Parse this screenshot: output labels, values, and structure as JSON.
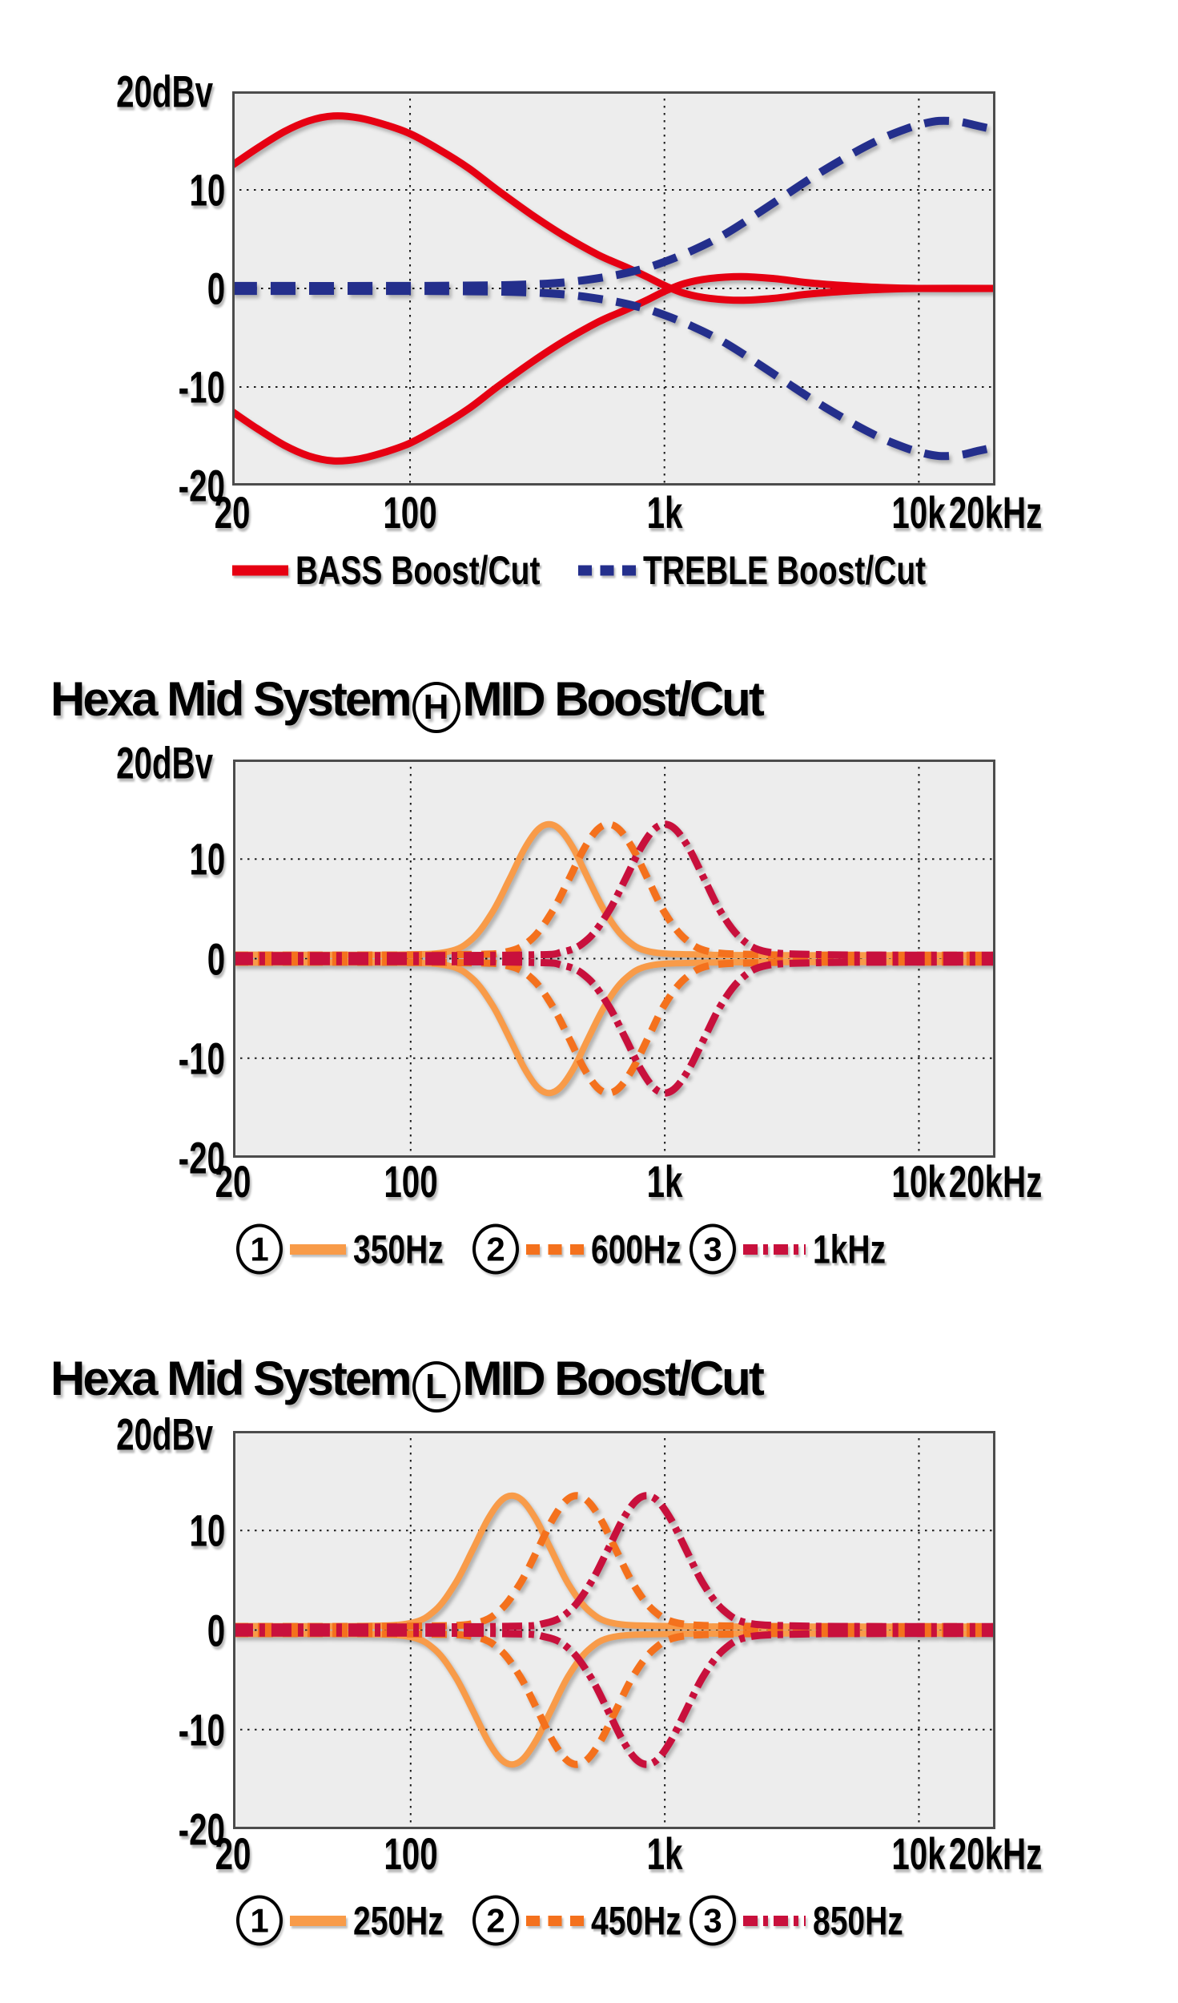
{
  "page": {
    "background": "#ffffff"
  },
  "colors": {
    "red": "#e60012",
    "blue": "#242f8c",
    "orange": "#f89b49",
    "orange_dark": "#f4711d",
    "crimson": "#c8103c",
    "plot_bg": "#ededed",
    "plot_border": "#4c4c4c",
    "grid": "#1a1a1a",
    "text": "#000000"
  },
  "chart_data": [
    {
      "id": "tone-control",
      "type": "line",
      "title": null,
      "x_scale": "log",
      "xlim": [
        20,
        20000
      ],
      "ylim": [
        -20,
        20
      ],
      "y_unit_label": "20dBv",
      "y_ticks": [
        {
          "v": 10,
          "label": "10"
        },
        {
          "v": 0,
          "label": "0"
        },
        {
          "v": -10,
          "label": "-10"
        },
        {
          "v": -20,
          "label": "-20"
        }
      ],
      "x_ticks": [
        {
          "f": 20,
          "label": "20"
        },
        {
          "f": 100,
          "label": "100"
        },
        {
          "f": 1000,
          "label": "1k"
        },
        {
          "f": 10000,
          "label": "10k"
        },
        {
          "f": 20000,
          "label": "20kHz"
        }
      ],
      "grid_x": [
        100,
        1000,
        10000
      ],
      "grid_y": [
        10,
        0,
        -10
      ],
      "series": [
        {
          "name": "BASS Boost/Cut",
          "color": "red",
          "style": "solid",
          "mirrored": true,
          "points": [
            [
              20,
              12.5
            ],
            [
              25,
              14.2
            ],
            [
              32,
              15.9
            ],
            [
              40,
              17.0
            ],
            [
              50,
              17.5
            ],
            [
              63,
              17.3
            ],
            [
              80,
              16.6
            ],
            [
              100,
              15.7
            ],
            [
              130,
              14.1
            ],
            [
              170,
              12.2
            ],
            [
              220,
              10.0
            ],
            [
              300,
              7.5
            ],
            [
              400,
              5.4
            ],
            [
              550,
              3.4
            ],
            [
              700,
              2.2
            ],
            [
              850,
              1.2
            ],
            [
              1000,
              0.3
            ],
            [
              1200,
              -0.5
            ],
            [
              1500,
              -1.0
            ],
            [
              2000,
              -1.2
            ],
            [
              2700,
              -1.0
            ],
            [
              3600,
              -0.6
            ],
            [
              5000,
              -0.3
            ],
            [
              7000,
              -0.1
            ],
            [
              10000,
              0
            ],
            [
              20000,
              0
            ]
          ]
        },
        {
          "name": "TREBLE Boost/Cut",
          "color": "blue",
          "style": "dashed",
          "mirrored": true,
          "points": [
            [
              20,
              0.25
            ],
            [
              80,
              0.25
            ],
            [
              150,
              0.28
            ],
            [
              250,
              0.35
            ],
            [
              400,
              0.6
            ],
            [
              600,
              1.2
            ],
            [
              800,
              1.9
            ],
            [
              1000,
              2.7
            ],
            [
              1300,
              3.9
            ],
            [
              1700,
              5.4
            ],
            [
              2200,
              7.2
            ],
            [
              3000,
              9.5
            ],
            [
              4000,
              11.6
            ],
            [
              5500,
              13.7
            ],
            [
              7000,
              15.1
            ],
            [
              8500,
              16.0
            ],
            [
              10000,
              16.6
            ],
            [
              12000,
              17.0
            ],
            [
              14500,
              16.9
            ],
            [
              17000,
              16.5
            ],
            [
              20000,
              16.1
            ]
          ]
        }
      ],
      "legend": [
        {
          "num": null,
          "label": "BASS Boost/Cut",
          "color": "red",
          "style": "solid"
        },
        {
          "num": null,
          "label": "TREBLE Boost/Cut",
          "color": "blue",
          "style": "dashed"
        }
      ]
    },
    {
      "id": "hexa-mid-h",
      "type": "line",
      "title": {
        "prefix": "Hexa Mid System",
        "circled": "H",
        "suffix": "MID Boost/Cut"
      },
      "x_scale": "log",
      "xlim": [
        20,
        20000
      ],
      "ylim": [
        -20,
        20
      ],
      "y_unit_label": "20dBv",
      "y_ticks": [
        {
          "v": 10,
          "label": "10"
        },
        {
          "v": 0,
          "label": "0"
        },
        {
          "v": -10,
          "label": "-10"
        },
        {
          "v": -20,
          "label": "-20"
        }
      ],
      "x_ticks": [
        {
          "f": 20,
          "label": "20"
        },
        {
          "f": 100,
          "label": "100"
        },
        {
          "f": 1000,
          "label": "1k"
        },
        {
          "f": 10000,
          "label": "10k"
        },
        {
          "f": 20000,
          "label": "20kHz"
        }
      ],
      "grid_x": [
        100,
        1000,
        10000
      ],
      "grid_y": [
        10,
        0,
        -10
      ],
      "series": [
        {
          "name": "350Hz",
          "color": "orange",
          "style": "solid",
          "mirrored": true,
          "points": [
            [
              20,
              0.4
            ],
            [
              87,
              0.4
            ],
            [
              140,
              0.7
            ],
            [
              175,
              2.0
            ],
            [
              210,
              4.7
            ],
            [
              245,
              8.0
            ],
            [
              280,
              11.0
            ],
            [
              315,
              12.9
            ],
            [
              350,
              13.5
            ],
            [
              389,
              12.9
            ],
            [
              438,
              11.0
            ],
            [
              500,
              8.0
            ],
            [
              585,
              4.6
            ],
            [
              700,
              2.0
            ],
            [
              875,
              0.7
            ],
            [
              1400,
              0.4
            ],
            [
              3000,
              0.35
            ],
            [
              20000,
              0.35
            ]
          ]
        },
        {
          "name": "600Hz",
          "color": "orange_dark",
          "style": "dashed",
          "mirrored": true,
          "points": [
            [
              20,
              0.35
            ],
            [
              150,
              0.4
            ],
            [
              240,
              0.7
            ],
            [
              300,
              2.0
            ],
            [
              360,
              4.7
            ],
            [
              420,
              8.0
            ],
            [
              480,
              11.0
            ],
            [
              540,
              12.9
            ],
            [
              600,
              13.5
            ],
            [
              666,
              12.9
            ],
            [
              750,
              11.0
            ],
            [
              858,
              8.0
            ],
            [
              1000,
              4.6
            ],
            [
              1200,
              2.0
            ],
            [
              1500,
              0.7
            ],
            [
              2400,
              0.4
            ],
            [
              5000,
              0.35
            ],
            [
              20000,
              0.35
            ]
          ]
        },
        {
          "name": "1kHz",
          "color": "crimson",
          "style": "dashdot",
          "mirrored": true,
          "points": [
            [
              20,
              0.3
            ],
            [
              250,
              0.35
            ],
            [
              400,
              0.7
            ],
            [
              500,
              2.0
            ],
            [
              600,
              4.7
            ],
            [
              700,
              8.0
            ],
            [
              800,
              11.0
            ],
            [
              900,
              12.9
            ],
            [
              1000,
              13.5
            ],
            [
              1110,
              12.9
            ],
            [
              1250,
              11.0
            ],
            [
              1430,
              8.0
            ],
            [
              1670,
              4.6
            ],
            [
              2000,
              2.0
            ],
            [
              2500,
              0.7
            ],
            [
              4000,
              0.4
            ],
            [
              8000,
              0.35
            ],
            [
              20000,
              0.35
            ]
          ]
        }
      ],
      "legend": [
        {
          "num": "1",
          "label": "350Hz",
          "color": "orange",
          "style": "solid"
        },
        {
          "num": "2",
          "label": "600Hz",
          "color": "orange_dark",
          "style": "dashed"
        },
        {
          "num": "3",
          "label": "1kHz",
          "color": "crimson",
          "style": "dashdot"
        }
      ]
    },
    {
      "id": "hexa-mid-l",
      "type": "line",
      "title": {
        "prefix": "Hexa Mid System",
        "circled": "L",
        "suffix": "MID Boost/Cut"
      },
      "x_scale": "log",
      "xlim": [
        20,
        20000
      ],
      "ylim": [
        -20,
        20
      ],
      "y_unit_label": "20dBv",
      "y_ticks": [
        {
          "v": 10,
          "label": "10"
        },
        {
          "v": 0,
          "label": "0"
        },
        {
          "v": -10,
          "label": "-10"
        },
        {
          "v": -20,
          "label": "-20"
        }
      ],
      "x_ticks": [
        {
          "f": 20,
          "label": "20"
        },
        {
          "f": 100,
          "label": "100"
        },
        {
          "f": 1000,
          "label": "1k"
        },
        {
          "f": 10000,
          "label": "10k"
        },
        {
          "f": 20000,
          "label": "20kHz"
        }
      ],
      "grid_x": [
        100,
        1000,
        10000
      ],
      "grid_y": [
        10,
        0,
        -10
      ],
      "series": [
        {
          "name": "250Hz",
          "color": "orange",
          "style": "solid",
          "mirrored": true,
          "points": [
            [
              20,
              0.4
            ],
            [
              62,
              0.4
            ],
            [
              100,
              0.7
            ],
            [
              125,
              2.0
            ],
            [
              150,
              4.7
            ],
            [
              175,
              8.0
            ],
            [
              200,
              11.0
            ],
            [
              225,
              12.9
            ],
            [
              250,
              13.5
            ],
            [
              278,
              12.9
            ],
            [
              313,
              11.0
            ],
            [
              358,
              8.0
            ],
            [
              418,
              4.6
            ],
            [
              500,
              2.0
            ],
            [
              625,
              0.7
            ],
            [
              1000,
              0.4
            ],
            [
              2500,
              0.35
            ],
            [
              20000,
              0.35
            ]
          ]
        },
        {
          "name": "450Hz",
          "color": "orange_dark",
          "style": "dashed",
          "mirrored": true,
          "points": [
            [
              20,
              0.35
            ],
            [
              112,
              0.4
            ],
            [
              180,
              0.7
            ],
            [
              225,
              2.0
            ],
            [
              270,
              4.7
            ],
            [
              315,
              8.0
            ],
            [
              360,
              11.0
            ],
            [
              405,
              12.9
            ],
            [
              450,
              13.5
            ],
            [
              500,
              12.9
            ],
            [
              563,
              11.0
            ],
            [
              644,
              8.0
            ],
            [
              752,
              4.6
            ],
            [
              900,
              2.0
            ],
            [
              1125,
              0.7
            ],
            [
              1800,
              0.4
            ],
            [
              4000,
              0.35
            ],
            [
              20000,
              0.35
            ]
          ]
        },
        {
          "name": "850Hz",
          "color": "crimson",
          "style": "dashdot",
          "mirrored": true,
          "points": [
            [
              20,
              0.3
            ],
            [
              212,
              0.35
            ],
            [
              340,
              0.7
            ],
            [
              425,
              2.0
            ],
            [
              510,
              4.7
            ],
            [
              595,
              8.0
            ],
            [
              680,
              11.0
            ],
            [
              765,
              12.9
            ],
            [
              850,
              13.5
            ],
            [
              944,
              12.9
            ],
            [
              1063,
              11.0
            ],
            [
              1216,
              8.0
            ],
            [
              1420,
              4.6
            ],
            [
              1700,
              2.0
            ],
            [
              2125,
              0.7
            ],
            [
              3400,
              0.4
            ],
            [
              7000,
              0.35
            ],
            [
              20000,
              0.35
            ]
          ]
        }
      ],
      "legend": [
        {
          "num": "1",
          "label": "250Hz",
          "color": "orange",
          "style": "solid"
        },
        {
          "num": "2",
          "label": "450Hz",
          "color": "orange_dark",
          "style": "dashed"
        },
        {
          "num": "3",
          "label": "850Hz",
          "color": "crimson",
          "style": "dashdot"
        }
      ]
    }
  ]
}
